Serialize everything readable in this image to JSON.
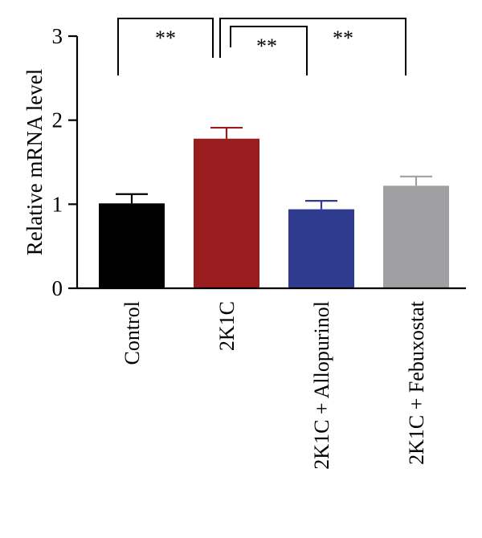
{
  "chart_data": {
    "type": "bar",
    "ylabel": "Relative mRNA level",
    "ylim": [
      0,
      3
    ],
    "yticks": [
      "0",
      "1",
      "2",
      "3"
    ],
    "categories": [
      "Control",
      "2K1C",
      "2K1C + Allopurinol",
      "2K1C + Febuxostat"
    ],
    "values": [
      1.01,
      1.78,
      0.94,
      1.22
    ],
    "errors": [
      0.11,
      0.13,
      0.1,
      0.11
    ],
    "colors": [
      "#000000",
      "#9b1c1f",
      "#2e3b8e",
      "#a0a0a3"
    ],
    "significance": [
      {
        "from": 0,
        "to": 1,
        "label": "**"
      },
      {
        "from": 1,
        "to": 2,
        "label": "**"
      },
      {
        "from": 1,
        "to": 3,
        "label": "**"
      }
    ]
  }
}
